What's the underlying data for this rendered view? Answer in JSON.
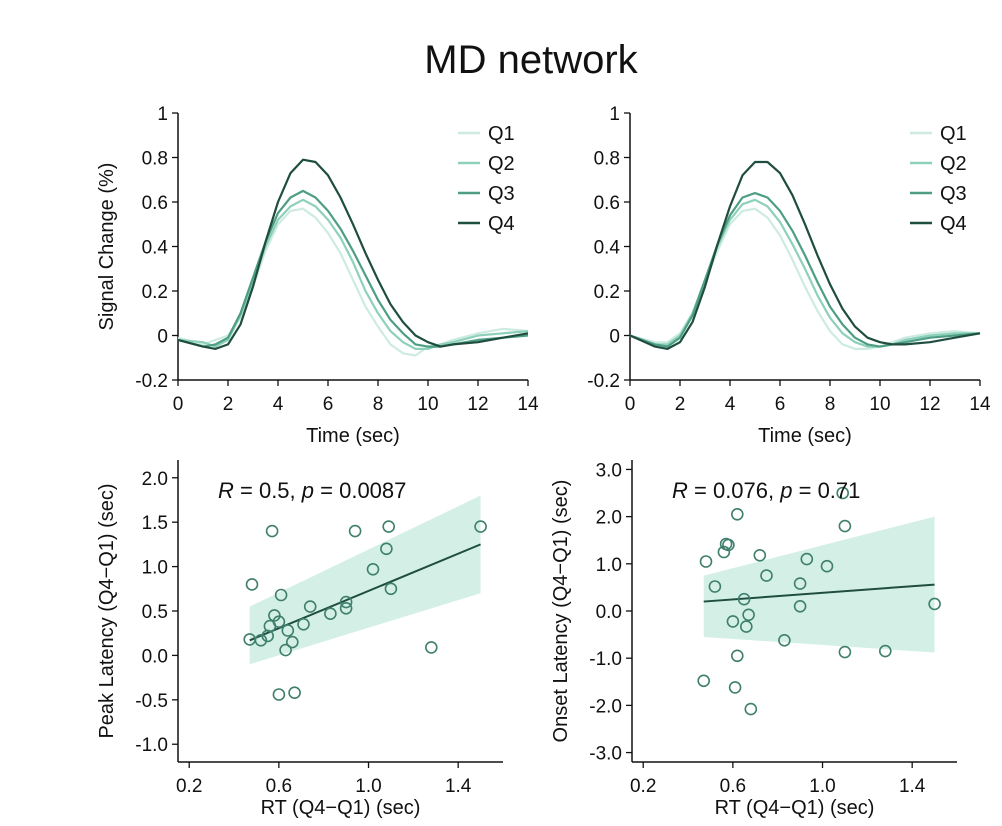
{
  "figure": {
    "title": "MD network"
  },
  "chart_data": [
    {
      "id": "tl",
      "type": "line",
      "ylabel": "Signal Change (%)",
      "xlabel": "Time (sec)",
      "xlim": [
        0,
        14
      ],
      "ylim": [
        -0.2,
        1
      ],
      "xticks": [
        0,
        2,
        4,
        6,
        8,
        10,
        12,
        14
      ],
      "yticks": [
        -0.2,
        0,
        0.2,
        0.4,
        0.6,
        0.8,
        1
      ],
      "ytick_labels": [
        "-0.2",
        "0",
        "0.2",
        "0.4",
        "0.6",
        "0.8",
        "1"
      ],
      "legend": "top-right",
      "series": [
        {
          "name": "Q1",
          "color": "#cdebe3",
          "x": [
            0,
            1,
            1.5,
            2,
            2.5,
            3,
            3.5,
            4,
            4.5,
            5,
            5.5,
            6,
            6.5,
            7,
            7.5,
            8,
            8.5,
            9,
            9.5,
            10,
            10.5,
            11,
            12,
            13,
            14
          ],
          "y": [
            -0.01,
            -0.04,
            -0.02,
            0,
            0.08,
            0.22,
            0.38,
            0.5,
            0.56,
            0.57,
            0.53,
            0.46,
            0.37,
            0.25,
            0.13,
            0.04,
            -0.04,
            -0.08,
            -0.09,
            -0.05,
            -0.04,
            -0.02,
            0.01,
            0.03,
            0.02
          ]
        },
        {
          "name": "Q2",
          "color": "#8dd1b9",
          "x": [
            0,
            1,
            1.5,
            2,
            2.5,
            3,
            3.5,
            4,
            4.5,
            5,
            5.5,
            6,
            6.5,
            7,
            7.5,
            8,
            8.5,
            9,
            9.5,
            10,
            10.5,
            11,
            12,
            13,
            14
          ],
          "y": [
            -0.02,
            -0.03,
            -0.05,
            -0.02,
            0.09,
            0.24,
            0.4,
            0.52,
            0.58,
            0.61,
            0.58,
            0.52,
            0.44,
            0.33,
            0.2,
            0.1,
            0.02,
            -0.03,
            -0.06,
            -0.06,
            -0.04,
            -0.03,
            0,
            0.01,
            0.02
          ]
        },
        {
          "name": "Q3",
          "color": "#4d9e85",
          "x": [
            0,
            1,
            1.5,
            2,
            2.5,
            3,
            3.5,
            4,
            4.5,
            5,
            5.5,
            6,
            6.5,
            7,
            7.5,
            8,
            8.5,
            9,
            9.5,
            10,
            10.5,
            11,
            12,
            13,
            14
          ],
          "y": [
            -0.02,
            -0.05,
            -0.04,
            -0.01,
            0.1,
            0.26,
            0.42,
            0.55,
            0.62,
            0.65,
            0.62,
            0.56,
            0.48,
            0.38,
            0.27,
            0.16,
            0.07,
            0.01,
            -0.04,
            -0.05,
            -0.05,
            -0.04,
            -0.02,
            -0.01,
            0
          ]
        },
        {
          "name": "Q4",
          "color": "#1f4d40",
          "x": [
            0,
            1,
            1.5,
            2,
            2.5,
            3,
            3.5,
            4,
            4.5,
            5,
            5.5,
            6,
            6.5,
            7,
            7.5,
            8,
            8.5,
            9,
            9.5,
            10,
            10.5,
            11,
            12,
            13,
            14
          ],
          "y": [
            -0.02,
            -0.05,
            -0.06,
            -0.04,
            0.05,
            0.22,
            0.42,
            0.6,
            0.73,
            0.79,
            0.78,
            0.72,
            0.62,
            0.5,
            0.37,
            0.25,
            0.14,
            0.06,
            0,
            -0.03,
            -0.05,
            -0.04,
            -0.03,
            -0.01,
            0.01
          ]
        }
      ]
    },
    {
      "id": "tr",
      "type": "line",
      "ylabel": "",
      "xlabel": "Time (sec)",
      "xlim": [
        0,
        14
      ],
      "ylim": [
        -0.2,
        1
      ],
      "xticks": [
        0,
        2,
        4,
        6,
        8,
        10,
        12,
        14
      ],
      "yticks": [
        -0.2,
        0,
        0.2,
        0.4,
        0.6,
        0.8,
        1
      ],
      "ytick_labels": [
        "-0.2",
        "0",
        "0.2",
        "0.4",
        "0.6",
        "0.8",
        "1"
      ],
      "legend": "top-right",
      "series": [
        {
          "name": "Q1",
          "color": "#cdebe3",
          "x": [
            0,
            1,
            1.5,
            2,
            2.5,
            3,
            3.5,
            4,
            4.5,
            5,
            5.5,
            6,
            6.5,
            7,
            7.5,
            8,
            8.5,
            9,
            9.5,
            10,
            10.5,
            11,
            12,
            13,
            14
          ],
          "y": [
            0,
            -0.03,
            -0.03,
            0.01,
            0.1,
            0.24,
            0.38,
            0.5,
            0.56,
            0.57,
            0.53,
            0.45,
            0.34,
            0.22,
            0.11,
            0.02,
            -0.04,
            -0.06,
            -0.06,
            -0.05,
            -0.03,
            -0.01,
            0.01,
            0.02,
            0.01
          ]
        },
        {
          "name": "Q2",
          "color": "#8dd1b9",
          "x": [
            0,
            1,
            1.5,
            2,
            2.5,
            3,
            3.5,
            4,
            4.5,
            5,
            5.5,
            6,
            6.5,
            7,
            7.5,
            8,
            8.5,
            9,
            9.5,
            10,
            10.5,
            11,
            12,
            13,
            14
          ],
          "y": [
            0,
            -0.04,
            -0.04,
            0,
            0.1,
            0.25,
            0.4,
            0.52,
            0.59,
            0.61,
            0.58,
            0.51,
            0.41,
            0.3,
            0.18,
            0.08,
            0.01,
            -0.03,
            -0.05,
            -0.05,
            -0.04,
            -0.02,
            0,
            0.01,
            0.01
          ]
        },
        {
          "name": "Q3",
          "color": "#4d9e85",
          "x": [
            0,
            1,
            1.5,
            2,
            2.5,
            3,
            3.5,
            4,
            4.5,
            5,
            5.5,
            6,
            6.5,
            7,
            7.5,
            8,
            8.5,
            9,
            9.5,
            10,
            10.5,
            11,
            12,
            13,
            14
          ],
          "y": [
            0,
            -0.04,
            -0.05,
            -0.01,
            0.09,
            0.25,
            0.41,
            0.54,
            0.62,
            0.64,
            0.62,
            0.56,
            0.47,
            0.36,
            0.24,
            0.13,
            0.05,
            -0.01,
            -0.04,
            -0.05,
            -0.04,
            -0.03,
            -0.01,
            0,
            0.01
          ]
        },
        {
          "name": "Q4",
          "color": "#1f4d40",
          "x": [
            0,
            1,
            1.5,
            2,
            2.5,
            3,
            3.5,
            4,
            4.5,
            5,
            5.5,
            6,
            6.5,
            7,
            7.5,
            8,
            8.5,
            9,
            9.5,
            10,
            10.5,
            11,
            12,
            13,
            14
          ],
          "y": [
            0,
            -0.05,
            -0.06,
            -0.03,
            0.06,
            0.22,
            0.41,
            0.58,
            0.72,
            0.78,
            0.78,
            0.73,
            0.63,
            0.5,
            0.36,
            0.23,
            0.12,
            0.04,
            -0.01,
            -0.03,
            -0.04,
            -0.04,
            -0.03,
            -0.01,
            0.01
          ]
        }
      ]
    },
    {
      "id": "bl",
      "type": "scatter",
      "ylabel": "Peak Latency (Q4−Q1) (sec)",
      "xlabel": "RT (Q4−Q1) (sec)",
      "xlim": [
        0.15,
        1.6
      ],
      "ylim": [
        -1.2,
        2.2
      ],
      "xticks": [
        0.2,
        0.6,
        1.0,
        1.4
      ],
      "xtick_labels": [
        "0.2",
        "0.6",
        "1.0",
        "1.4"
      ],
      "yticks": [
        -1.0,
        -0.5,
        0.0,
        0.5,
        1.0,
        1.5,
        2.0
      ],
      "ytick_labels": [
        "-1.0",
        "-0.5",
        "0.0",
        "0.5",
        "1.0",
        "1.5",
        "2.0"
      ],
      "annotation": {
        "r_label": "R",
        "r_value": " = 0.5, ",
        "p_label": "p",
        "p_value": " = 0.0087"
      },
      "fit": {
        "x": [
          0.47,
          1.5
        ],
        "y": [
          0.17,
          1.25
        ],
        "band_upper": [
          0.55,
          1.8
        ],
        "band_lower": [
          -0.1,
          0.7
        ]
      },
      "points": [
        {
          "x": 0.47,
          "y": 0.18
        },
        {
          "x": 0.48,
          "y": 0.8
        },
        {
          "x": 0.52,
          "y": 0.17
        },
        {
          "x": 0.55,
          "y": 0.22
        },
        {
          "x": 0.56,
          "y": 0.33
        },
        {
          "x": 0.57,
          "y": 1.4
        },
        {
          "x": 0.58,
          "y": 0.45
        },
        {
          "x": 0.6,
          "y": 0.38
        },
        {
          "x": 0.61,
          "y": 0.68
        },
        {
          "x": 0.6,
          "y": -0.44
        },
        {
          "x": 0.63,
          "y": 0.06
        },
        {
          "x": 0.64,
          "y": 0.28
        },
        {
          "x": 0.66,
          "y": 0.15
        },
        {
          "x": 0.67,
          "y": -0.42
        },
        {
          "x": 0.71,
          "y": 0.35
        },
        {
          "x": 0.74,
          "y": 0.55
        },
        {
          "x": 0.83,
          "y": 0.47
        },
        {
          "x": 0.9,
          "y": 0.6
        },
        {
          "x": 0.9,
          "y": 0.53
        },
        {
          "x": 0.94,
          "y": 1.4
        },
        {
          "x": 1.02,
          "y": 0.97
        },
        {
          "x": 1.08,
          "y": 1.2
        },
        {
          "x": 1.09,
          "y": 1.45
        },
        {
          "x": 1.1,
          "y": 0.75
        },
        {
          "x": 1.28,
          "y": 0.09
        },
        {
          "x": 1.5,
          "y": 1.45
        }
      ]
    },
    {
      "id": "br",
      "type": "scatter",
      "ylabel": "Onset Latency (Q4−Q1) (sec)",
      "xlabel": "RT (Q4−Q1) (sec)",
      "xlim": [
        0.15,
        1.6
      ],
      "ylim": [
        -3.2,
        3.2
      ],
      "xticks": [
        0.2,
        0.6,
        1.0,
        1.4
      ],
      "xtick_labels": [
        "0.2",
        "0.6",
        "1.0",
        "1.4"
      ],
      "yticks": [
        -3.0,
        -2.0,
        -1.0,
        0.0,
        1.0,
        2.0,
        3.0
      ],
      "ytick_labels": [
        "-3.0",
        "-2.0",
        "-1.0",
        "0.0",
        "1.0",
        "2.0",
        "3.0"
      ],
      "annotation": {
        "r_label": "R",
        "r_value": " = 0.076, ",
        "p_label": "p",
        "p_value": " = 0.71"
      },
      "fit": {
        "x": [
          0.47,
          1.5
        ],
        "y": [
          0.2,
          0.56
        ],
        "band_upper": [
          0.75,
          2.0
        ],
        "band_lower": [
          -0.55,
          -0.88
        ]
      },
      "points": [
        {
          "x": 0.47,
          "y": -1.48
        },
        {
          "x": 0.48,
          "y": 1.05
        },
        {
          "x": 0.52,
          "y": 0.52
        },
        {
          "x": 0.56,
          "y": 1.25
        },
        {
          "x": 0.57,
          "y": 1.42
        },
        {
          "x": 0.58,
          "y": 1.4
        },
        {
          "x": 0.6,
          "y": -0.22
        },
        {
          "x": 0.61,
          "y": -1.62
        },
        {
          "x": 0.62,
          "y": 2.05
        },
        {
          "x": 0.62,
          "y": -0.95
        },
        {
          "x": 0.65,
          "y": 0.25
        },
        {
          "x": 0.66,
          "y": -0.33
        },
        {
          "x": 0.67,
          "y": -0.08
        },
        {
          "x": 0.68,
          "y": -2.08
        },
        {
          "x": 0.72,
          "y": 1.18
        },
        {
          "x": 0.75,
          "y": 0.75
        },
        {
          "x": 0.83,
          "y": -0.62
        },
        {
          "x": 0.9,
          "y": 0.58
        },
        {
          "x": 0.9,
          "y": 0.1
        },
        {
          "x": 0.93,
          "y": 1.1
        },
        {
          "x": 1.02,
          "y": 0.95
        },
        {
          "x": 1.09,
          "y": 2.5
        },
        {
          "x": 1.1,
          "y": 1.8
        },
        {
          "x": 1.1,
          "y": -0.87
        },
        {
          "x": 1.28,
          "y": -0.85
        },
        {
          "x": 1.5,
          "y": 0.15
        }
      ]
    }
  ]
}
